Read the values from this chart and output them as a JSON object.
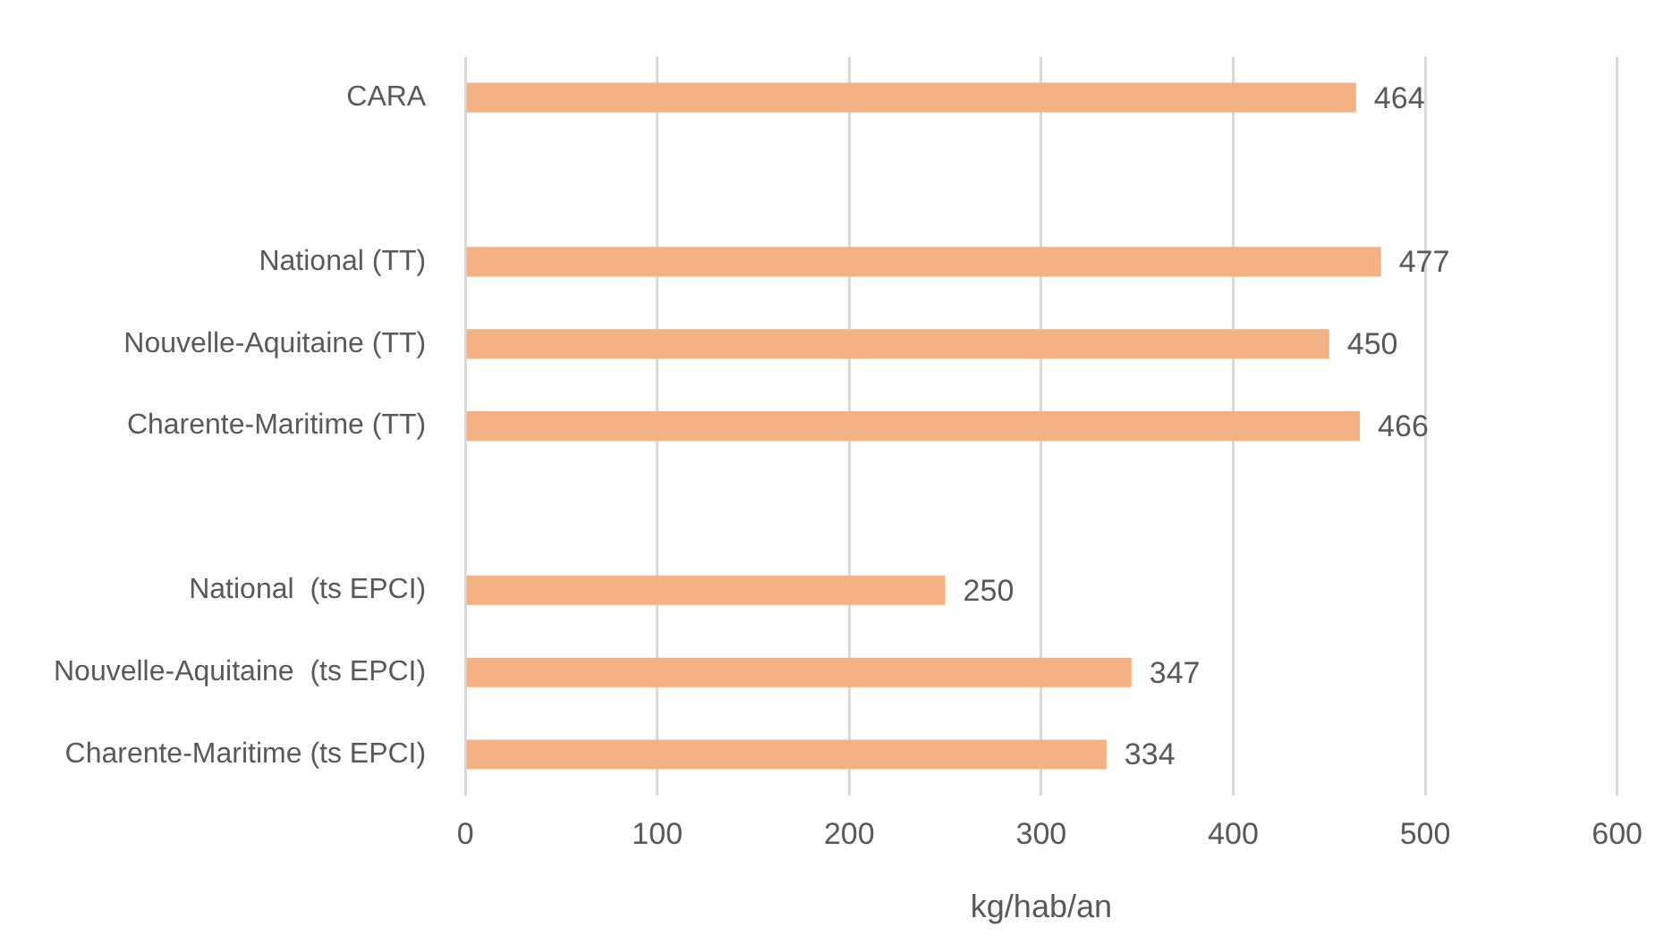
{
  "chart_data": {
    "type": "bar",
    "orientation": "horizontal",
    "xlabel": "kg/hab/an",
    "categories": [
      "CARA",
      null,
      "National (TT)",
      "Nouvelle-Aquitaine (TT)",
      "Charente-Maritime (TT)",
      null,
      "National  (ts EPCI)",
      "Nouvelle-Aquitaine  (ts EPCI)",
      "Charente-Maritime (ts EPCI)"
    ],
    "values": [
      464,
      null,
      477,
      450,
      466,
      null,
      250,
      347,
      334
    ],
    "color": "#f4b183",
    "xlim": [
      0,
      600
    ],
    "xticks": [
      0,
      100,
      200,
      300,
      400,
      500,
      600
    ],
    "grid": "x",
    "legend": false,
    "data_labels": true
  }
}
